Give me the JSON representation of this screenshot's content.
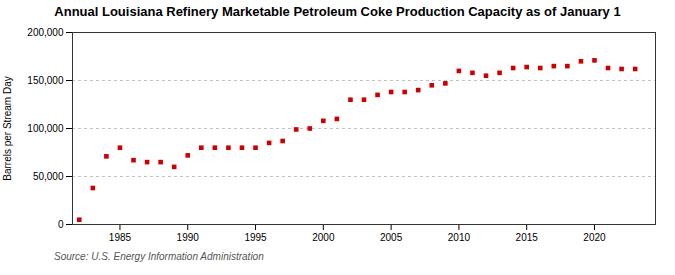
{
  "chart_data": {
    "type": "scatter",
    "title": "Annual Louisiana Refinery Marketable Petroleum Coke Production Capacity as of January 1",
    "ylabel": "Barrels per Stream Day",
    "source": "Source: U.S. Energy Information Administration",
    "color": "#cc0000",
    "marker": "square",
    "grid": true,
    "x": [
      1982,
      1983,
      1984,
      1985,
      1986,
      1987,
      1988,
      1989,
      1990,
      1991,
      1992,
      1993,
      1994,
      1995,
      1996,
      1997,
      1998,
      1999,
      2000,
      2001,
      2002,
      2003,
      2004,
      2005,
      2006,
      2007,
      2008,
      2009,
      2010,
      2011,
      2012,
      2013,
      2014,
      2015,
      2016,
      2017,
      2018,
      2019,
      2020,
      2021,
      2022,
      2023
    ],
    "values": [
      5000,
      38000,
      71000,
      80000,
      67000,
      65000,
      65000,
      60000,
      72000,
      80000,
      80000,
      80000,
      80000,
      80000,
      85000,
      87000,
      99000,
      100000,
      108000,
      110000,
      130000,
      130000,
      135000,
      138000,
      138000,
      140000,
      145000,
      147000,
      160000,
      158000,
      155000,
      158000,
      163000,
      164000,
      163000,
      165000,
      165000,
      170000,
      171000,
      163000,
      162000,
      162000
    ],
    "xlim": [
      1981.5,
      2024.5
    ],
    "xticks": [
      1985,
      1990,
      1995,
      2000,
      2005,
      2010,
      2015,
      2020
    ],
    "ylim": [
      0,
      200000
    ],
    "yticks": [
      0,
      {
        "value": 50000,
        "label": "50,000"
      },
      {
        "value": 100000,
        "label": "100,000"
      },
      {
        "value": 150000,
        "label": "150,000"
      },
      {
        "value": 200000,
        "label": "200,000"
      }
    ]
  }
}
